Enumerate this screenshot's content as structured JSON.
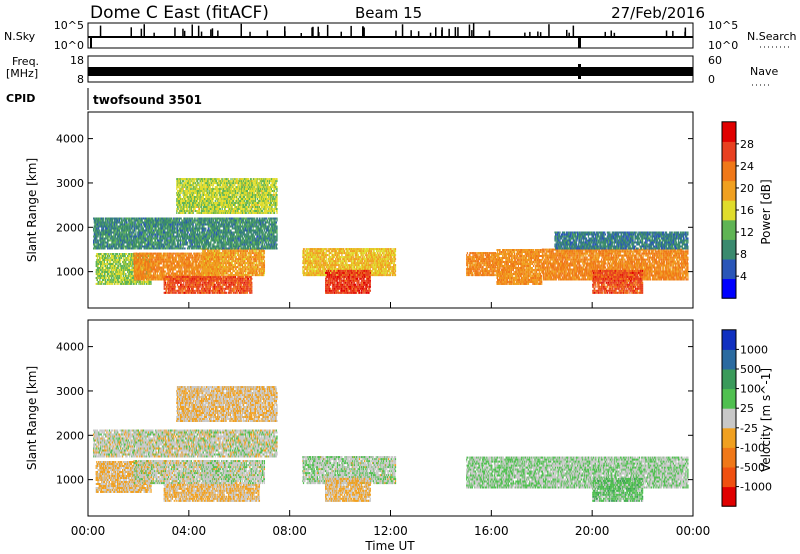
{
  "header": {
    "title": "Dome C East (fitACF)",
    "beam": "Beam 15",
    "date": "27/Feb/2016"
  },
  "nsky_panel": {
    "label": "N.Sky",
    "right_label": "N.Search",
    "ticks_left": [
      "10^5",
      "10^0"
    ],
    "ticks_right": [
      "10^5",
      "10^0"
    ]
  },
  "freq_panel": {
    "label_line1": "Freq.",
    "label_line2": "[MHz]",
    "ticks_left": [
      "18",
      "8"
    ],
    "right_label": "Nave",
    "ticks_right": [
      "60",
      "0"
    ]
  },
  "cpid": {
    "label": "CPID",
    "value": "twofsound 3501"
  },
  "colors": {
    "power_scale": [
      "#0000ff",
      "#2a56b8",
      "#3a8a6e",
      "#5fb454",
      "#e0dc2c",
      "#f0a020",
      "#f07818",
      "#e84020",
      "#e00000"
    ],
    "velocity_scale": [
      "#e00000",
      "#f05010",
      "#f07818",
      "#f0a020",
      "#c8c8c8",
      "#50c050",
      "#3a9a5a",
      "#2a6aa0",
      "#1030c0"
    ]
  },
  "chart_data": [
    {
      "type": "heatmap",
      "title": "",
      "xlabel": "",
      "ylabel": "Slant Range [km]",
      "colorbar_label": "Power [dB]",
      "colorbar_ticks": [
        "28",
        "24",
        "20",
        "16",
        "12",
        "8",
        "4"
      ],
      "colorbar_range": [
        0,
        32
      ],
      "x_ticks": [
        "00:00",
        "04:00",
        "08:00",
        "12:00",
        "16:00",
        "20:00",
        "00:00"
      ],
      "x_range_hours": [
        0,
        24
      ],
      "y_ticks": [
        "4000",
        "3000",
        "2000",
        "1000"
      ],
      "y_range_km": [
        180,
        4600
      ],
      "regions": [
        {
          "t0": 0.3,
          "t1": 2.5,
          "r0": 700,
          "r1": 1400,
          "v": 14
        },
        {
          "t0": 1.8,
          "t1": 5.2,
          "r0": 800,
          "r1": 1400,
          "v": 22
        },
        {
          "t0": 3.0,
          "t1": 6.5,
          "r0": 500,
          "r1": 900,
          "v": 26
        },
        {
          "t0": 4.5,
          "t1": 7.0,
          "r0": 900,
          "r1": 1500,
          "v": 20
        },
        {
          "t0": 0.2,
          "t1": 7.5,
          "r0": 1500,
          "r1": 2200,
          "v": 9
        },
        {
          "t0": 3.5,
          "t1": 7.5,
          "r0": 2300,
          "r1": 3100,
          "v": 15
        },
        {
          "t0": 8.5,
          "t1": 12.2,
          "r0": 900,
          "r1": 1500,
          "v": 18
        },
        {
          "t0": 9.4,
          "t1": 11.2,
          "r0": 500,
          "r1": 1000,
          "v": 27
        },
        {
          "t0": 15.0,
          "t1": 16.2,
          "r0": 900,
          "r1": 1400,
          "v": 22
        },
        {
          "t0": 16.2,
          "t1": 18.0,
          "r0": 700,
          "r1": 1500,
          "v": 21
        },
        {
          "t0": 18.0,
          "t1": 23.8,
          "r0": 800,
          "r1": 1500,
          "v": 22
        },
        {
          "t0": 20.0,
          "t1": 22.0,
          "r0": 500,
          "r1": 1000,
          "v": 26
        },
        {
          "t0": 18.5,
          "t1": 23.8,
          "r0": 1500,
          "r1": 1900,
          "v": 8
        }
      ]
    },
    {
      "type": "heatmap",
      "title": "",
      "xlabel": "Time UT",
      "ylabel": "Slant Range [km]",
      "colorbar_label": "Velocity [m s^-1]",
      "colorbar_ticks": [
        "1000",
        "500",
        "100",
        "25",
        "-25",
        "-100",
        "-500",
        "-1000"
      ],
      "colorbar_range": [
        -1500,
        1500
      ],
      "x_ticks": [
        "00:00",
        "04:00",
        "08:00",
        "12:00",
        "16:00",
        "20:00",
        "00:00"
      ],
      "x_range_hours": [
        0,
        24
      ],
      "y_ticks": [
        "4000",
        "3000",
        "2000",
        "1000"
      ],
      "y_range_km": [
        180,
        4600
      ],
      "regions": [
        {
          "t0": 0.3,
          "t1": 2.5,
          "r0": 700,
          "r1": 1400,
          "v": -200
        },
        {
          "t0": 1.8,
          "t1": 5.2,
          "r0": 900,
          "r1": 1400,
          "v": 0
        },
        {
          "t0": 3.0,
          "t1": 6.8,
          "r0": 500,
          "r1": 900,
          "v": -200
        },
        {
          "t0": 4.5,
          "t1": 7.0,
          "r0": 900,
          "r1": 1400,
          "v": 60
        },
        {
          "t0": 0.2,
          "t1": 7.5,
          "r0": 1500,
          "r1": 2100,
          "v": 0
        },
        {
          "t0": 3.5,
          "t1": 7.5,
          "r0": 2300,
          "r1": 3100,
          "v": -150
        },
        {
          "t0": 8.5,
          "t1": 12.2,
          "r0": 900,
          "r1": 1500,
          "v": 80
        },
        {
          "t0": 9.4,
          "t1": 11.2,
          "r0": 500,
          "r1": 1000,
          "v": -200
        },
        {
          "t0": 15.0,
          "t1": 18.0,
          "r0": 800,
          "r1": 1500,
          "v": 150
        },
        {
          "t0": 18.0,
          "t1": 23.8,
          "r0": 800,
          "r1": 1500,
          "v": 120
        },
        {
          "t0": 20.0,
          "t1": 22.0,
          "r0": 500,
          "r1": 1000,
          "v": 300
        }
      ]
    }
  ]
}
